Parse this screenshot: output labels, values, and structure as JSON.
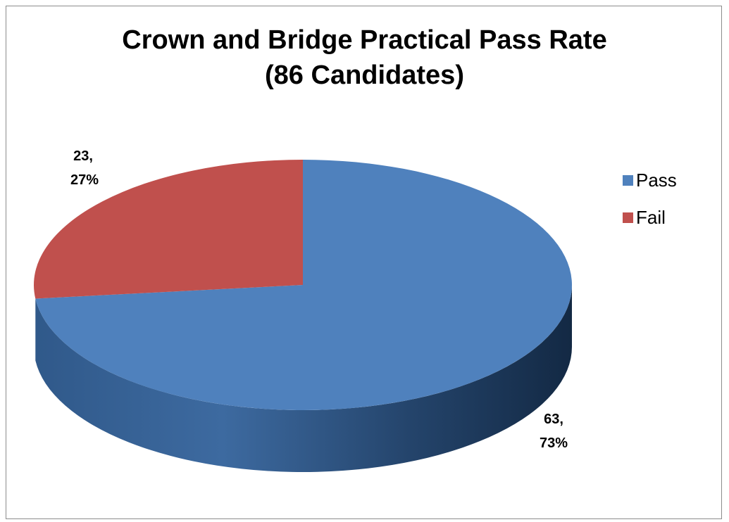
{
  "chart_data": {
    "type": "pie",
    "style": "3d",
    "title": "Crown and Bridge Practical Pass Rate",
    "subtitle": "(86 Candidates)",
    "legend_position": "right",
    "slices": [
      {
        "name": "Pass",
        "value": 63,
        "percent": 73,
        "color": "#4f81bd",
        "label_line1": "63,",
        "label_line2": "73%"
      },
      {
        "name": "Fail",
        "value": 23,
        "percent": 27,
        "color": "#c0504d",
        "label_line1": "23,",
        "label_line2": "27%"
      }
    ],
    "legend": [
      "Pass",
      "Fail"
    ]
  }
}
